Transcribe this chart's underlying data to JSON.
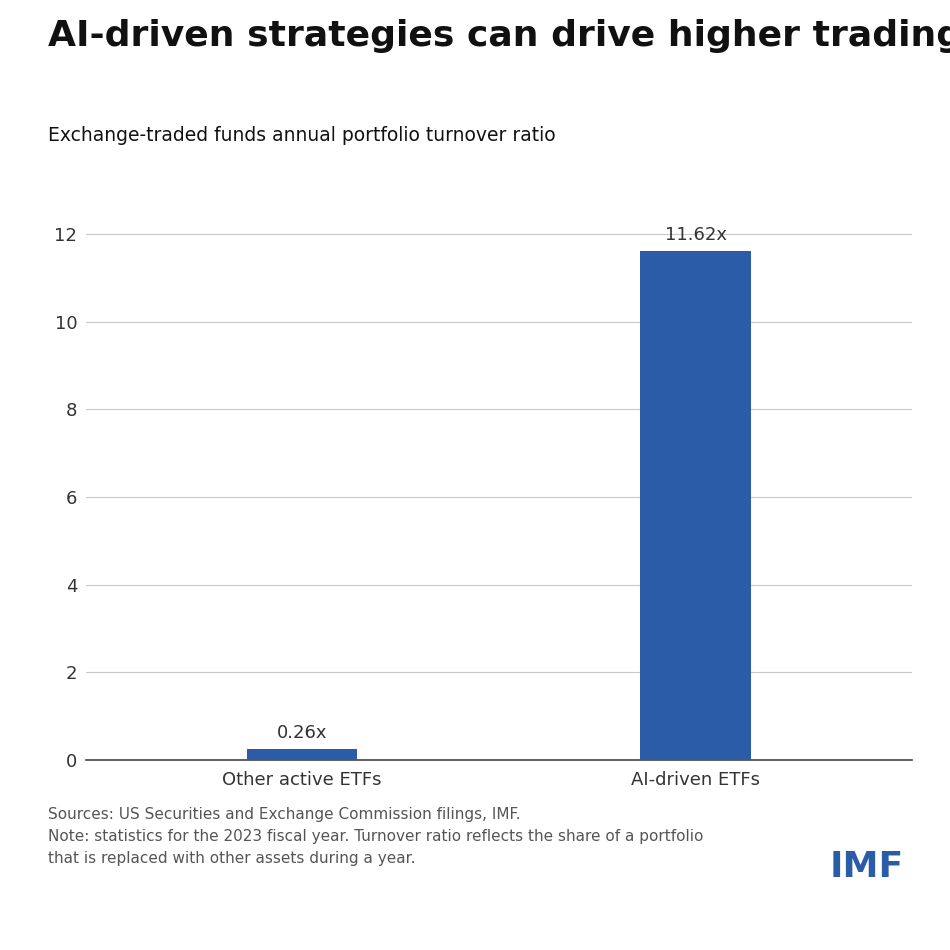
{
  "title": "AI-driven strategies can drive higher trading volumes",
  "subtitle": "Exchange-traded funds annual portfolio turnover ratio",
  "categories": [
    "Other active ETFs",
    "AI-driven ETFs"
  ],
  "values": [
    0.26,
    11.62
  ],
  "labels": [
    "0.26x",
    "11.62x"
  ],
  "bar_color": "#2B5CA8",
  "background_color": "#FFFFFF",
  "ylim": [
    0,
    13
  ],
  "yticks": [
    0,
    2,
    4,
    6,
    8,
    10,
    12
  ],
  "grid_color": "#C8C8C8",
  "title_fontsize": 26,
  "subtitle_fontsize": 13.5,
  "tick_fontsize": 13,
  "label_fontsize": 13,
  "footer_text": "Sources: US Securities and Exchange Commission filings, IMF.\nNote: statistics for the 2023 fiscal year. Turnover ratio reflects the share of a portfolio\nthat is replaced with other assets during a year.",
  "footer_fontsize": 11,
  "imf_text": "IMF",
  "imf_color": "#2B5CA8",
  "imf_fontsize": 26,
  "bar_width": 0.28
}
